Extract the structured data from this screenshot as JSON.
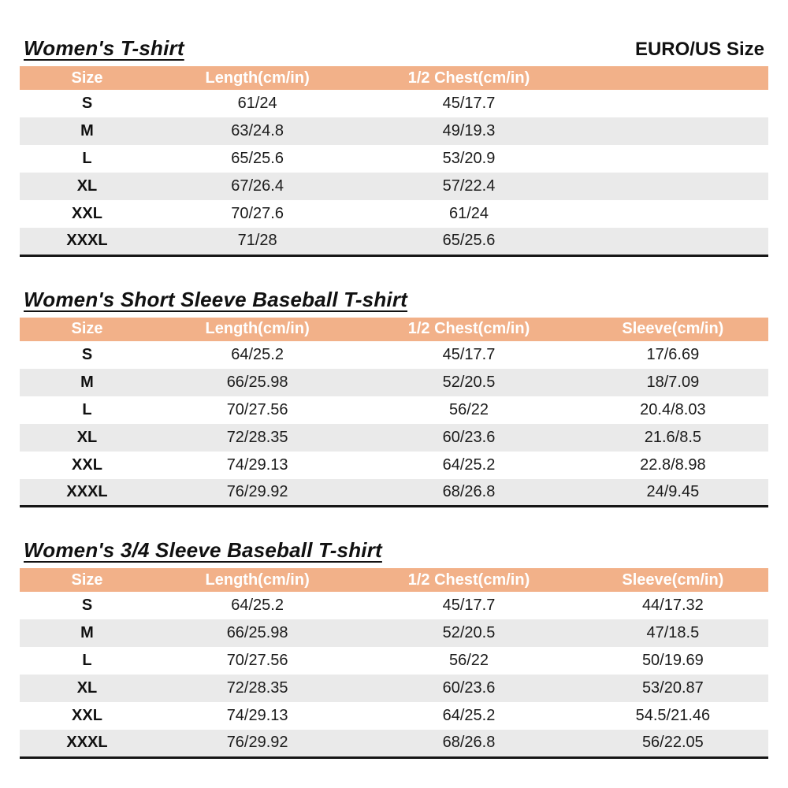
{
  "page": {
    "euro_us_label": "EURO/US Size"
  },
  "colors": {
    "header_bg": "#F2B189",
    "header_text": "#FFFFFF",
    "row_alt_bg": "#EAEAEA",
    "table_bottom_border": "#161616",
    "text": "#1B1B1B"
  },
  "column_widths_percent": [
    18,
    27.5,
    29,
    25.5
  ],
  "tables": [
    {
      "title": "Women's T-shirt",
      "columns": [
        "Size",
        "Length(cm/in)",
        "1/2 Chest(cm/in)",
        ""
      ],
      "rows": [
        [
          "S",
          "61/24",
          "45/17.7",
          ""
        ],
        [
          "M",
          "63/24.8",
          "49/19.3",
          ""
        ],
        [
          "L",
          "65/25.6",
          "53/20.9",
          ""
        ],
        [
          "XL",
          "67/26.4",
          "57/22.4",
          ""
        ],
        [
          "XXL",
          "70/27.6",
          "61/24",
          ""
        ],
        [
          "XXXL",
          "71/28",
          "65/25.6",
          ""
        ]
      ]
    },
    {
      "title": "Women's Short Sleeve Baseball T-shirt",
      "columns": [
        "Size",
        "Length(cm/in)",
        "1/2 Chest(cm/in)",
        "Sleeve(cm/in)"
      ],
      "rows": [
        [
          "S",
          "64/25.2",
          "45/17.7",
          "17/6.69"
        ],
        [
          "M",
          "66/25.98",
          "52/20.5",
          "18/7.09"
        ],
        [
          "L",
          "70/27.56",
          "56/22",
          "20.4/8.03"
        ],
        [
          "XL",
          "72/28.35",
          "60/23.6",
          "21.6/8.5"
        ],
        [
          "XXL",
          "74/29.13",
          "64/25.2",
          "22.8/8.98"
        ],
        [
          "XXXL",
          "76/29.92",
          "68/26.8",
          "24/9.45"
        ]
      ]
    },
    {
      "title": "Women's 3/4 Sleeve Baseball T-shirt",
      "columns": [
        "Size",
        "Length(cm/in)",
        "1/2 Chest(cm/in)",
        "Sleeve(cm/in)"
      ],
      "rows": [
        [
          "S",
          "64/25.2",
          "45/17.7",
          "44/17.32"
        ],
        [
          "M",
          "66/25.98",
          "52/20.5",
          "47/18.5"
        ],
        [
          "L",
          "70/27.56",
          "56/22",
          "50/19.69"
        ],
        [
          "XL",
          "72/28.35",
          "60/23.6",
          "53/20.87"
        ],
        [
          "XXL",
          "74/29.13",
          "64/25.2",
          "54.5/21.46"
        ],
        [
          "XXXL",
          "76/29.92",
          "68/26.8",
          "56/22.05"
        ]
      ]
    }
  ]
}
